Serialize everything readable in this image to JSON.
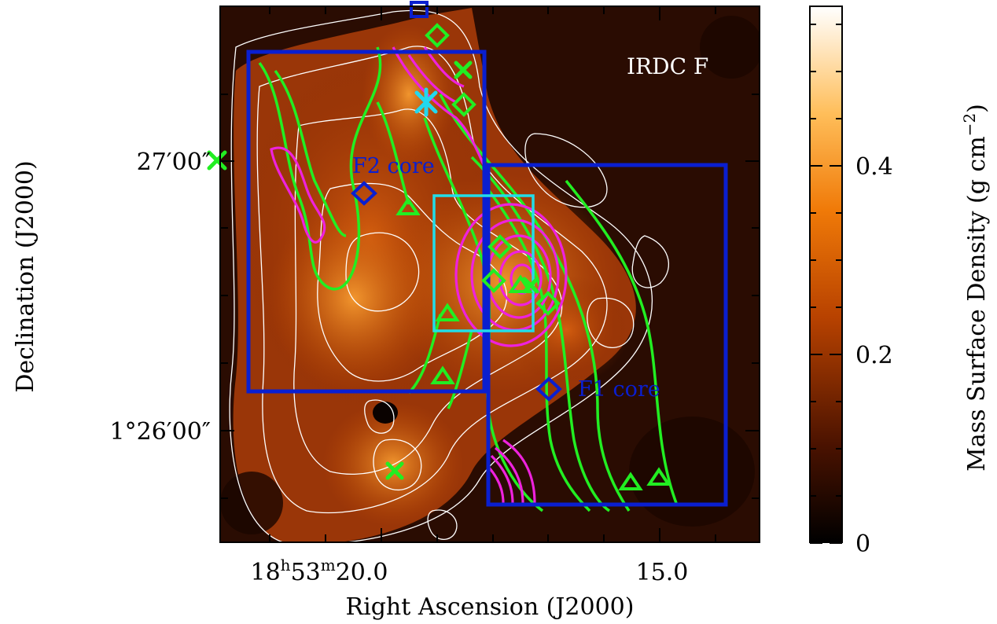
{
  "figure": {
    "panel_label": "IRDC F",
    "x_axis": {
      "label": "Right Ascension (J2000)",
      "ticks": [
        {
          "hours": "18",
          "minutes": "53",
          "seconds": "20.0"
        },
        {
          "seconds": "15.0"
        }
      ]
    },
    "y_axis": {
      "label": "Declination (J2000)",
      "ticks": [
        "27′00″",
        "1°26′00″"
      ]
    },
    "colorbar": {
      "label": "Mass Surface Density (g cm",
      "label_exponent": "−2",
      "label_close": ")",
      "ticks": [
        "0.4",
        "0.2",
        "0"
      ],
      "colors": [
        "#000000",
        "#5a1800",
        "#c24a00",
        "#ff8a10",
        "#ffd28a",
        "#ffffff"
      ]
    },
    "annotations": {
      "core_f2": "F2 core",
      "core_f1": "F1 core"
    },
    "colors": {
      "boxes": "#0a1fd0",
      "zoom_box": "#22dde8",
      "green_contours": "#22ee22",
      "magenta_contours": "#ee22dd",
      "white_contours": "#ffffff",
      "star_marker": "#22d8ee"
    }
  }
}
